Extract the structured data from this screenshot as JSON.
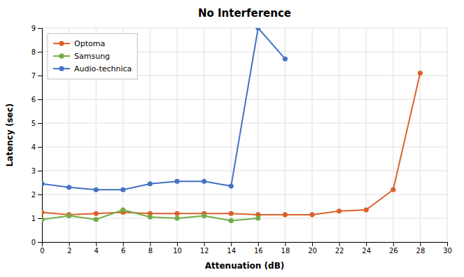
{
  "chart_data": {
    "type": "line",
    "title": "No Interference",
    "xlabel": "Attenuation (dB)",
    "ylabel": "Latency (sec)",
    "xlim": [
      0,
      30
    ],
    "ylim": [
      0,
      9
    ],
    "xticks": [
      0,
      2,
      4,
      6,
      8,
      10,
      12,
      14,
      16,
      18,
      20,
      22,
      24,
      26,
      28,
      30
    ],
    "yticks": [
      0,
      1,
      2,
      3,
      4,
      5,
      6,
      7,
      8,
      9
    ],
    "grid": true,
    "legend": "upper left",
    "series": [
      {
        "name": "Optoma",
        "color": "#D9622B",
        "marker": "circle",
        "x": [
          0,
          2,
          4,
          6,
          8,
          10,
          12,
          14,
          16,
          18,
          20,
          22,
          24,
          26,
          28
        ],
        "values": [
          1.25,
          1.15,
          1.2,
          1.25,
          1.2,
          1.2,
          1.2,
          1.2,
          1.15,
          1.15,
          1.15,
          1.3,
          1.35,
          2.2,
          7.1
        ]
      },
      {
        "name": "Samsung",
        "color": "#70AD47",
        "marker": "circle",
        "x": [
          0,
          2,
          4,
          6,
          8,
          10,
          12,
          14,
          16
        ],
        "values": [
          0.95,
          1.1,
          0.95,
          1.35,
          1.05,
          1.0,
          1.1,
          0.9,
          1.0
        ]
      },
      {
        "name": "Audio-technica",
        "color": "#4472C4",
        "marker": "circle",
        "x": [
          0,
          2,
          4,
          6,
          8,
          10,
          12,
          14,
          16,
          18
        ],
        "values": [
          2.45,
          2.3,
          2.2,
          2.2,
          2.45,
          2.55,
          2.55,
          2.35,
          9.0,
          7.7
        ]
      }
    ]
  }
}
